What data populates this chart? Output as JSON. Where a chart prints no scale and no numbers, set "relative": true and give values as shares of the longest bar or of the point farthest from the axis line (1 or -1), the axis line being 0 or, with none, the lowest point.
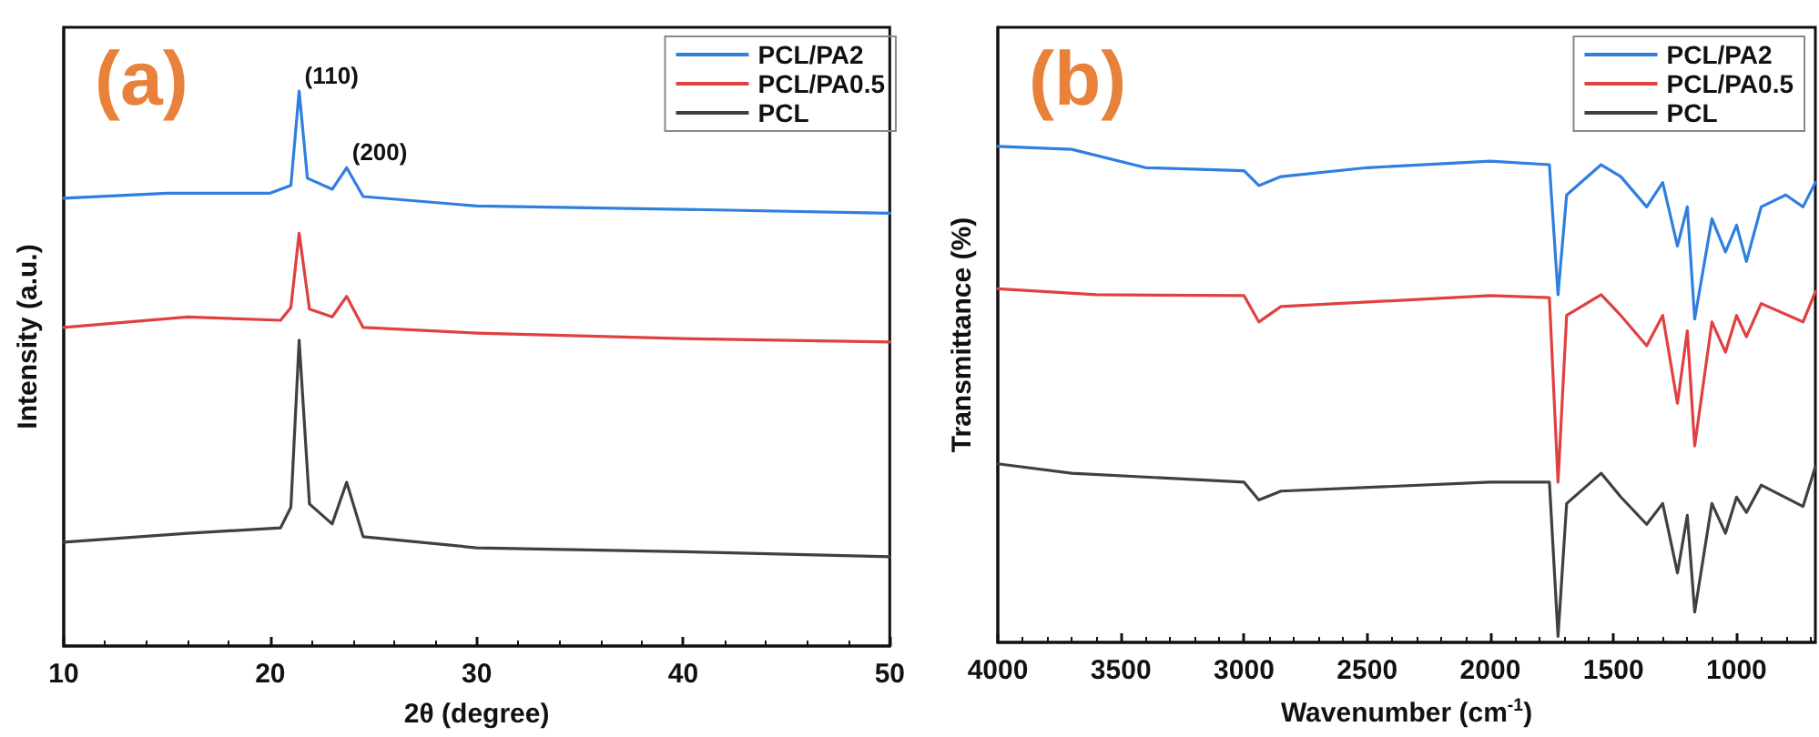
{
  "chart_data": [
    {
      "type": "line",
      "title": "(a)",
      "xlabel": "2θ (degree)",
      "ylabel": "Intensity (a.u.)",
      "relative": true,
      "xlim": [
        10,
        50
      ],
      "xticks": [
        10,
        20,
        30,
        40,
        50
      ],
      "grid": false,
      "legend": "top right",
      "marker": "none",
      "line_style": "solid",
      "annotations": [
        {
          "text": "(110)",
          "x": 21.4,
          "y": 1.0
        },
        {
          "text": "(200)",
          "x": 23.7,
          "y": 0.862
        }
      ],
      "series": [
        {
          "name": "PCL/PA2",
          "color": "#2f7fe0",
          "x": [
            10,
            15,
            20,
            21,
            21.4,
            21.8,
            23,
            23.7,
            24.5,
            30,
            40,
            50
          ],
          "values": [
            0.807,
            0.816,
            0.816,
            0.83,
            1.0,
            0.843,
            0.823,
            0.862,
            0.81,
            0.793,
            0.787,
            0.78
          ]
        },
        {
          "name": "PCL/PA0.5",
          "color": "#e04040",
          "x": [
            10,
            16,
            20.5,
            21,
            21.4,
            21.9,
            23,
            23.7,
            24.5,
            30,
            40,
            50
          ],
          "values": [
            0.574,
            0.593,
            0.587,
            0.61,
            0.744,
            0.607,
            0.593,
            0.63,
            0.574,
            0.564,
            0.554,
            0.548
          ]
        },
        {
          "name": "PCL",
          "color": "#404040",
          "x": [
            10,
            16,
            20.5,
            21,
            21.4,
            21.9,
            23,
            23.7,
            24.5,
            30,
            40,
            50
          ],
          "values": [
            0.187,
            0.203,
            0.213,
            0.25,
            0.551,
            0.256,
            0.22,
            0.295,
            0.197,
            0.177,
            0.17,
            0.161
          ]
        }
      ]
    },
    {
      "type": "line",
      "title": "(b)",
      "xlabel": "Wavenumber (cm$^{-1}$)",
      "ylabel": "Transmittance (%)",
      "relative": true,
      "xlim": [
        4000,
        680
      ],
      "xticks": [
        4000,
        3500,
        3000,
        2500,
        2000,
        1500,
        1000
      ],
      "grid": false,
      "legend": "top right",
      "marker": "none",
      "line_style": "solid",
      "series": [
        {
          "name": "PCL/PA2",
          "color": "#2f7fe0",
          "x": [
            4000,
            3700,
            3400,
            3000,
            2940,
            2850,
            2500,
            2000,
            1760,
            1725,
            1690,
            1550,
            1470,
            1365,
            1300,
            1240,
            1200,
            1170,
            1100,
            1045,
            1000,
            960,
            900,
            800,
            730,
            680
          ],
          "values": [
            1.0,
            0.994,
            0.957,
            0.951,
            0.921,
            0.939,
            0.957,
            0.97,
            0.963,
            0.701,
            0.902,
            0.963,
            0.939,
            0.878,
            0.927,
            0.799,
            0.878,
            0.652,
            0.854,
            0.787,
            0.841,
            0.768,
            0.878,
            0.902,
            0.878,
            0.927
          ]
        },
        {
          "name": "PCL/PA0.5",
          "color": "#e04040",
          "x": [
            4000,
            3600,
            3000,
            2940,
            2850,
            2000,
            1760,
            1725,
            1690,
            1550,
            1470,
            1365,
            1300,
            1240,
            1200,
            1170,
            1100,
            1045,
            1000,
            960,
            900,
            730,
            680
          ],
          "values": [
            0.713,
            0.701,
            0.699,
            0.646,
            0.677,
            0.699,
            0.695,
            0.323,
            0.659,
            0.701,
            0.659,
            0.598,
            0.659,
            0.482,
            0.628,
            0.396,
            0.646,
            0.585,
            0.659,
            0.616,
            0.683,
            0.646,
            0.707
          ]
        },
        {
          "name": "PCL",
          "color": "#404040",
          "x": [
            4000,
            3700,
            3000,
            2940,
            2850,
            2000,
            1760,
            1725,
            1690,
            1550,
            1470,
            1365,
            1300,
            1240,
            1200,
            1170,
            1100,
            1045,
            1000,
            960,
            900,
            730,
            680
          ],
          "values": [
            0.36,
            0.341,
            0.323,
            0.287,
            0.305,
            0.323,
            0.323,
            0.012,
            0.28,
            0.341,
            0.293,
            0.238,
            0.28,
            0.14,
            0.256,
            0.061,
            0.28,
            0.22,
            0.293,
            0.262,
            0.317,
            0.274,
            0.354
          ]
        }
      ]
    }
  ]
}
